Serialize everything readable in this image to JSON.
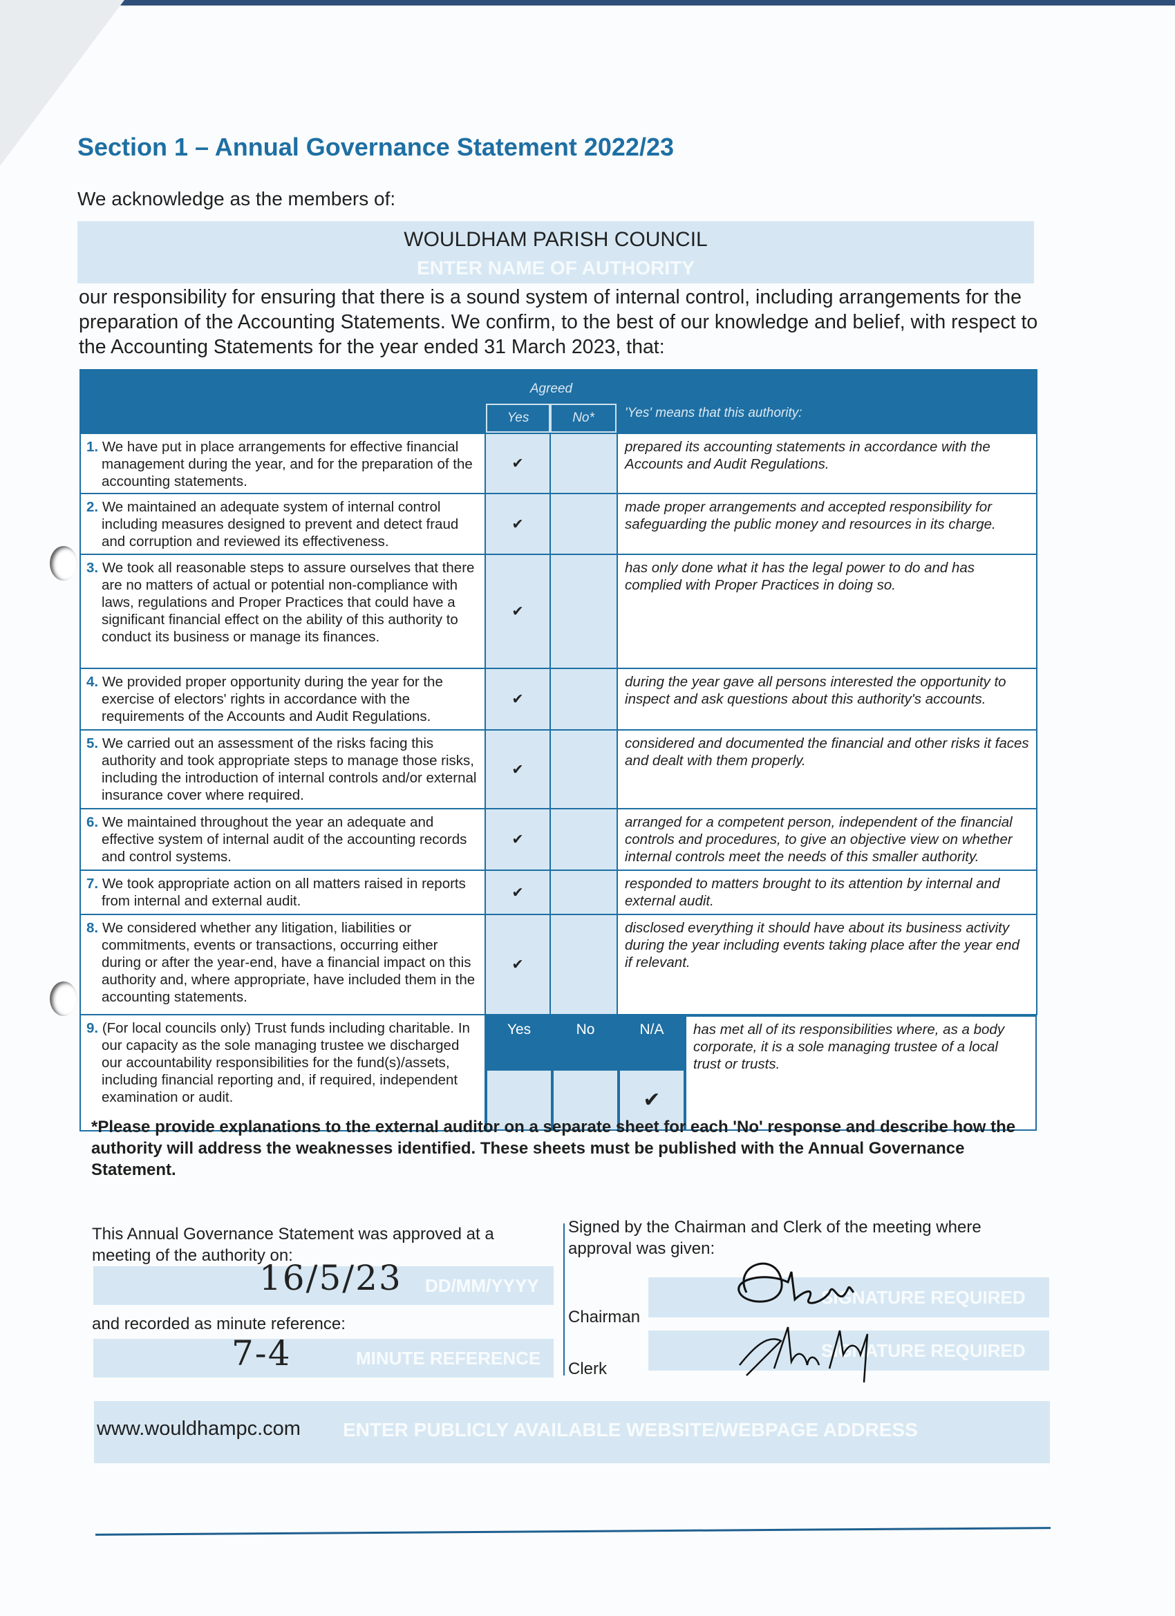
{
  "section_title": "Section 1 – Annual Governance Statement 2022/23",
  "acknowledge": "We acknowledge as the members of:",
  "authority": {
    "value": "WOULDHAM PARISH COUNCIL",
    "placeholder": "ENTER NAME OF AUTHORITY"
  },
  "intro": "our responsibility for ensuring that there is a sound system of internal control, including arrangements for the preparation of the Accounting Statements. We confirm, to the best of our knowledge and belief, with respect to the Accounting Statements for the year ended 31 March 2023, that:",
  "table": {
    "agreed": "Agreed",
    "yes": "Yes",
    "no": "No*",
    "means": "'Yes' means that this authority:",
    "check": "✔",
    "rows": [
      {
        "num": "1.",
        "text": "We have put in place arrangements for effective financial management during the year, and for the preparation of the accounting statements.",
        "answer": "yes",
        "desc": "prepared its accounting statements in accordance with the Accounts and Audit Regulations."
      },
      {
        "num": "2.",
        "text": "We maintained an adequate system of internal control including measures designed to prevent and detect fraud and corruption and reviewed its effectiveness.",
        "answer": "yes",
        "desc": "made proper arrangements and accepted responsibility for safeguarding the public money and resources in its charge."
      },
      {
        "num": "3.",
        "text": "We took all reasonable steps to assure ourselves that there are no matters of actual or potential non-compliance with laws, regulations and Proper Practices that could have a significant financial effect on the ability of this authority to conduct its business or manage its finances.",
        "answer": "yes",
        "desc": "has only done what it has the legal power to do and has complied with Proper Practices in doing so."
      },
      {
        "num": "4.",
        "text": "We provided proper opportunity during the year for the exercise of electors' rights in accordance with the requirements of the Accounts and Audit Regulations.",
        "answer": "yes",
        "desc": "during the year gave all persons interested the opportunity to inspect and ask questions about this authority's accounts."
      },
      {
        "num": "5.",
        "text": "We carried out an assessment of the risks facing this authority and took appropriate steps to manage those risks, including the introduction of internal controls and/or external insurance cover where required.",
        "answer": "yes",
        "desc": "considered and documented the financial and other risks it faces and dealt with them properly."
      },
      {
        "num": "6.",
        "text": "We maintained throughout the year an adequate and effective system of internal audit of the accounting records and control systems.",
        "answer": "yes",
        "desc": "arranged for a competent person, independent of the financial controls and procedures, to give an objective view on whether internal controls meet the needs of this smaller authority."
      },
      {
        "num": "7.",
        "text": "We took appropriate action on all matters raised in reports from internal and external audit.",
        "answer": "yes",
        "desc": "responded to matters brought to its attention by internal and external audit."
      },
      {
        "num": "8.",
        "text": "We considered whether any litigation, liabilities or commitments, events or transactions, occurring either during or after the year-end, have a financial impact on this authority and, where appropriate, have included them in the accounting statements.",
        "answer": "yes",
        "desc": "disclosed everything it should have about its business activity during the year including events taking place after the year end if relevant."
      }
    ],
    "row9": {
      "num": "9.",
      "text": "(For local councils only) Trust funds including charitable. In our capacity as the sole managing trustee we discharged our accountability responsibilities for the fund(s)/assets, including financial reporting and, if required, independent examination or audit.",
      "yes": "Yes",
      "no": "No",
      "na": "N/A",
      "answer": "na",
      "desc": "has met all of its responsibilities where, as a body corporate, it is a sole managing trustee of a local trust or trusts."
    }
  },
  "footnote": "*Please provide explanations to the external auditor on a separate sheet for each 'No' response and describe how the authority will address the weaknesses identified. These sheets must be published with the Annual Governance Statement.",
  "approval": {
    "approved_label": "This Annual Governance Statement was approved at a meeting of the authority on:",
    "date": "16/5/23",
    "date_placeholder": "DD/MM/YYYY",
    "minute_label": "and recorded as minute reference:",
    "minute": "7-4",
    "minute_placeholder": "MINUTE REFERENCE"
  },
  "signatures": {
    "label": "Signed by the Chairman and Clerk of the meeting where approval was given:",
    "chairman": "Chairman",
    "clerk": "Clerk",
    "placeholder": "SIGNATURE REQUIRED"
  },
  "website": {
    "value": "www.wouldhampc.com",
    "placeholder": "ENTER PUBLICLY AVAILABLE WEBSITE/WEBPAGE ADDRESS"
  },
  "colors": {
    "accent": "#1e6fa3",
    "field": "#d6e7f3"
  }
}
